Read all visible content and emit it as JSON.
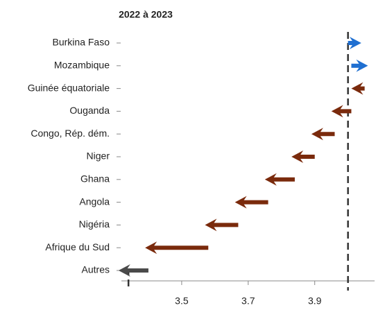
{
  "chart_data": {
    "type": "arrow",
    "subtitle": "2022 à 2023",
    "categories": [
      "Burkina Faso",
      "Mozambique",
      "Guinée équatoriale",
      "Ouganda",
      "Congo, Rép. dém.",
      "Niger",
      "Ghana",
      "Angola",
      "Nigéria",
      "Afrique du Sud",
      "Autres"
    ],
    "start_values": [
      4.0,
      4.01,
      4.05,
      4.01,
      3.96,
      3.9,
      3.84,
      3.76,
      3.67,
      3.58,
      3.4
    ],
    "end_values": [
      4.04,
      4.06,
      4.01,
      3.95,
      3.89,
      3.83,
      3.75,
      3.66,
      3.57,
      3.39,
      3.31
    ],
    "colors": [
      "#1f6fd1",
      "#1f6fd1",
      "#7a2a0c",
      "#7a2a0c",
      "#7a2a0c",
      "#7a2a0c",
      "#7a2a0c",
      "#7a2a0c",
      "#7a2a0c",
      "#7a2a0c",
      "#4a4a4a"
    ],
    "xlim": [
      3.3,
      4.08
    ],
    "xticks": [
      3.5,
      3.7,
      3.9
    ],
    "dashed_lines": [
      {
        "value": 4.0,
        "full": true
      },
      {
        "value": 3.34,
        "full": false
      }
    ]
  }
}
